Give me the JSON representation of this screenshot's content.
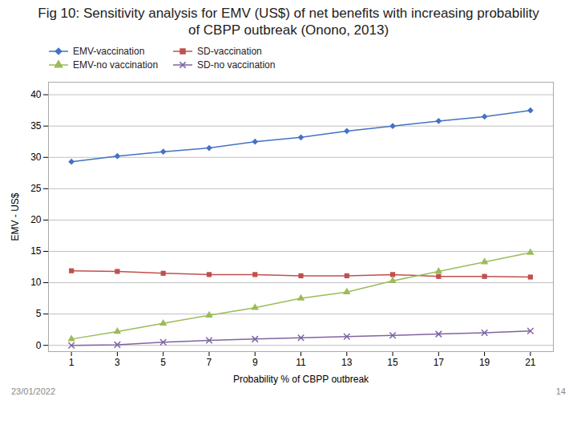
{
  "chart_data": {
    "type": "line",
    "title": "Fig 10: Sensitivity analysis for EMV (US$) of net benefits with increasing probability of CBPP outbreak (Onono, 2013)",
    "xlabel": "Probability % of CBPP outbreak",
    "ylabel": "EMV - US$",
    "x": [
      1,
      3,
      5,
      7,
      9,
      11,
      13,
      15,
      17,
      19,
      21
    ],
    "series": [
      {
        "name": "EMV-vaccination",
        "color": "#4472C4",
        "marker": "diamond",
        "values": [
          29.3,
          30.2,
          30.9,
          31.5,
          32.5,
          33.2,
          34.2,
          35.0,
          35.8,
          36.5,
          37.5
        ]
      },
      {
        "name": "SD-vaccination",
        "color": "#C0504D",
        "marker": "square",
        "values": [
          11.9,
          11.8,
          11.5,
          11.3,
          11.3,
          11.1,
          11.1,
          11.3,
          11.0,
          11.0,
          10.9
        ]
      },
      {
        "name": "EMV-no vaccination",
        "color": "#9BBB59",
        "marker": "triangle",
        "values": [
          1.0,
          2.2,
          3.5,
          4.8,
          6.0,
          7.5,
          8.5,
          10.3,
          11.8,
          13.3,
          14.8
        ]
      },
      {
        "name": "SD-no vaccination",
        "color": "#8064A2",
        "marker": "x",
        "values": [
          0.0,
          0.1,
          0.5,
          0.8,
          1.0,
          1.2,
          1.4,
          1.6,
          1.8,
          2.0,
          2.3
        ]
      }
    ],
    "xlim": [
      0,
      22
    ],
    "xticks": [
      1,
      3,
      5,
      7,
      9,
      11,
      13,
      15,
      17,
      19,
      21
    ],
    "ylim": [
      -1,
      42
    ],
    "yticks": [
      0,
      5,
      10,
      15,
      20,
      25,
      30,
      35,
      40
    ],
    "grid": "y",
    "legend": "upper left",
    "annotations": [
      "23/01/2022",
      "14"
    ]
  }
}
